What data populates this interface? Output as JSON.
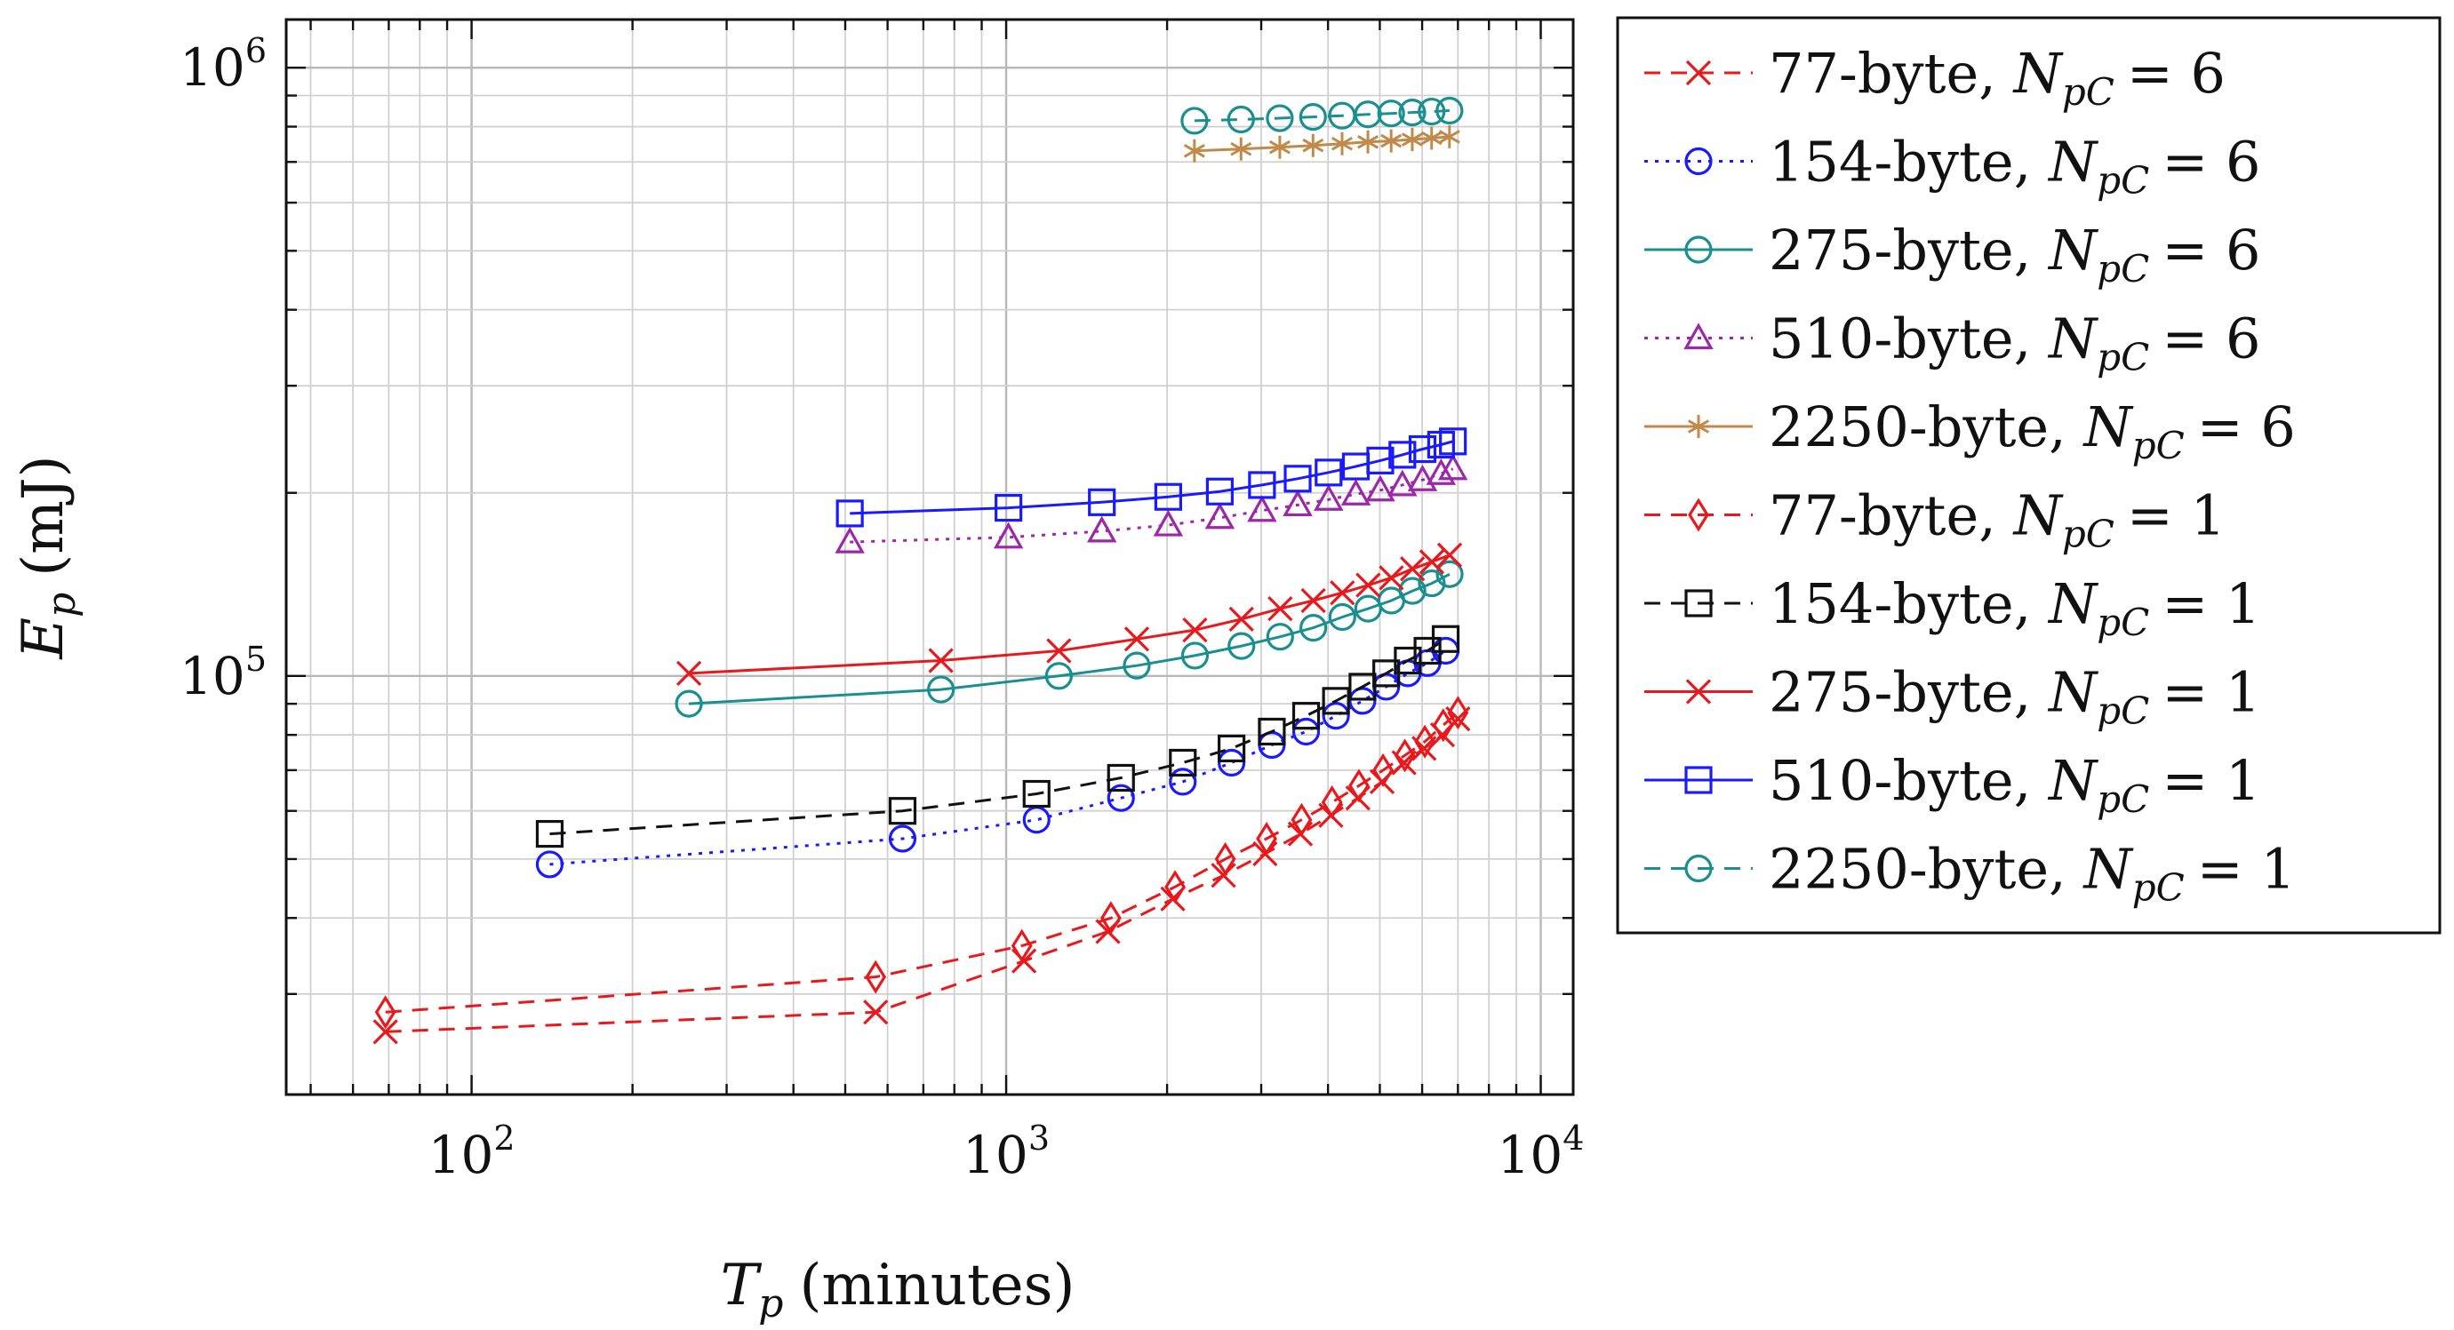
{
  "chart_data": {
    "type": "line",
    "xscale": "log",
    "yscale": "log",
    "xlim": [
      45,
      11500
    ],
    "ylim": [
      20500,
      1200000
    ],
    "xticks": [
      {
        "value": 100,
        "base": "10",
        "exp": "2"
      },
      {
        "value": 1000,
        "base": "10",
        "exp": "3"
      },
      {
        "value": 10000,
        "base": "10",
        "exp": "4"
      }
    ],
    "yticks": [
      {
        "value": 100000,
        "base": "10",
        "exp": "5"
      },
      {
        "value": 1000000,
        "base": "10",
        "exp": "6"
      }
    ],
    "xlabel": {
      "symbol": "T",
      "sub": "p",
      "unit": "(minutes)"
    },
    "ylabel": {
      "symbol": "E",
      "sub": "p",
      "unit": "(mJ)"
    },
    "grid": true,
    "legend_position": "outside-right",
    "series": [
      {
        "name": "77-byte",
        "npc_symbol": "N",
        "npc_sub": "pC",
        "npc_value": "= 6",
        "color": "#e8191c",
        "marker": "x",
        "dash": "18,12",
        "values": [
          [
            69,
            26000
          ],
          [
            570,
            28000
          ],
          [
            1080,
            34000
          ],
          [
            1550,
            38000
          ],
          [
            2050,
            43000
          ],
          [
            2550,
            47000
          ],
          [
            3050,
            51000
          ],
          [
            3550,
            55000
          ],
          [
            4050,
            59000
          ],
          [
            4550,
            63000
          ],
          [
            5050,
            67000
          ],
          [
            5550,
            72000
          ],
          [
            6050,
            76000
          ],
          [
            6550,
            80000
          ],
          [
            7000,
            85000
          ]
        ]
      },
      {
        "name": "154-byte",
        "npc_symbol": "N",
        "npc_sub": "pC",
        "npc_value": "= 6",
        "color": "#1a1aff",
        "marker": "o",
        "dash": "4,8",
        "values": [
          [
            140,
            49000
          ],
          [
            640,
            54000
          ],
          [
            1140,
            58000
          ],
          [
            1640,
            63000
          ],
          [
            2140,
            67000
          ],
          [
            2640,
            72000
          ],
          [
            3140,
            77000
          ],
          [
            3640,
            81000
          ],
          [
            4140,
            86000
          ],
          [
            4640,
            91000
          ],
          [
            5140,
            96000
          ],
          [
            5640,
            101000
          ],
          [
            6140,
            105000
          ],
          [
            6640,
            110000
          ]
        ]
      },
      {
        "name": "275-byte",
        "npc_symbol": "N",
        "npc_sub": "pC",
        "npc_value": "= 6",
        "color": "#1a8f8f",
        "marker": "o",
        "dash": "",
        "values": [
          [
            255,
            90000
          ],
          [
            755,
            95000
          ],
          [
            1255,
            100000
          ],
          [
            1755,
            104000
          ],
          [
            2255,
            108000
          ],
          [
            2755,
            112000
          ],
          [
            3255,
            116000
          ],
          [
            3755,
            120000
          ],
          [
            4255,
            125000
          ],
          [
            4755,
            129000
          ],
          [
            5255,
            133000
          ],
          [
            5755,
            138000
          ],
          [
            6255,
            142000
          ],
          [
            6755,
            147000
          ]
        ]
      },
      {
        "name": "510-byte",
        "npc_symbol": "N",
        "npc_sub": "pC",
        "npc_value": "= 6",
        "color": "#9c27a8",
        "marker": "triangle",
        "dash": "4,8",
        "values": [
          [
            510,
            166000
          ],
          [
            1010,
            169000
          ],
          [
            1510,
            173000
          ],
          [
            2010,
            177000
          ],
          [
            2510,
            182000
          ],
          [
            3010,
            187000
          ],
          [
            3510,
            191000
          ],
          [
            4010,
            195000
          ],
          [
            4510,
            199000
          ],
          [
            5010,
            202000
          ],
          [
            5510,
            206000
          ],
          [
            6010,
            210000
          ],
          [
            6510,
            215000
          ],
          [
            6850,
            219000
          ]
        ]
      },
      {
        "name": "2250-byte",
        "npc_symbol": "N",
        "npc_sub": "pC",
        "npc_value": "= 6",
        "color": "#c08a4a",
        "marker": "asterisk",
        "dash": "",
        "values": [
          [
            2250,
            730000
          ],
          [
            2750,
            735000
          ],
          [
            3250,
            740000
          ],
          [
            3750,
            745000
          ],
          [
            4250,
            750000
          ],
          [
            4750,
            755000
          ],
          [
            5250,
            758000
          ],
          [
            5750,
            762000
          ],
          [
            6250,
            766000
          ],
          [
            6750,
            770000
          ]
        ]
      },
      {
        "name": "77-byte",
        "npc_symbol": "N",
        "npc_sub": "pC",
        "npc_value": "= 1",
        "color": "#e8191c",
        "marker": "diamond",
        "dash": "18,12",
        "values": [
          [
            69,
            28000
          ],
          [
            570,
            32000
          ],
          [
            1070,
            36000
          ],
          [
            1570,
            40000
          ],
          [
            2070,
            45000
          ],
          [
            2570,
            50000
          ],
          [
            3070,
            54000
          ],
          [
            3570,
            58000
          ],
          [
            4070,
            62000
          ],
          [
            4570,
            66000
          ],
          [
            5070,
            70000
          ],
          [
            5570,
            74000
          ],
          [
            6070,
            78000
          ],
          [
            6570,
            83000
          ],
          [
            7000,
            87000
          ]
        ]
      },
      {
        "name": "154-byte",
        "npc_symbol": "N",
        "npc_sub": "pC",
        "npc_value": "= 1",
        "color": "#111111",
        "marker": "square",
        "dash": "18,12",
        "values": [
          [
            140,
            55000
          ],
          [
            640,
            60000
          ],
          [
            1140,
            64000
          ],
          [
            1640,
            68000
          ],
          [
            2140,
            72000
          ],
          [
            2640,
            76000
          ],
          [
            3140,
            81000
          ],
          [
            3640,
            86000
          ],
          [
            4140,
            91000
          ],
          [
            4640,
            96000
          ],
          [
            5140,
            101000
          ],
          [
            5640,
            106000
          ],
          [
            6140,
            110000
          ],
          [
            6640,
            115000
          ]
        ]
      },
      {
        "name": "275-byte",
        "npc_symbol": "N",
        "npc_sub": "pC",
        "npc_value": "= 1",
        "color": "#e8191c",
        "marker": "x",
        "dash": "",
        "values": [
          [
            255,
            101000
          ],
          [
            755,
            106000
          ],
          [
            1255,
            110000
          ],
          [
            1755,
            115000
          ],
          [
            2255,
            119000
          ],
          [
            2755,
            124000
          ],
          [
            3255,
            129000
          ],
          [
            3755,
            133000
          ],
          [
            4255,
            137000
          ],
          [
            4755,
            141000
          ],
          [
            5255,
            145000
          ],
          [
            5755,
            150000
          ],
          [
            6255,
            154000
          ],
          [
            6755,
            158000
          ]
        ]
      },
      {
        "name": "510-byte",
        "npc_symbol": "N",
        "npc_sub": "pC",
        "npc_value": "= 1",
        "color": "#1a1aff",
        "marker": "square",
        "dash": "",
        "values": [
          [
            510,
            185000
          ],
          [
            1010,
            189000
          ],
          [
            1510,
            193000
          ],
          [
            2010,
            197000
          ],
          [
            2510,
            201000
          ],
          [
            3010,
            206000
          ],
          [
            3510,
            211000
          ],
          [
            4010,
            216000
          ],
          [
            4510,
            221000
          ],
          [
            5010,
            226000
          ],
          [
            5510,
            231000
          ],
          [
            6010,
            236000
          ],
          [
            6510,
            240000
          ],
          [
            6850,
            243000
          ]
        ]
      },
      {
        "name": "2250-byte",
        "npc_symbol": "N",
        "npc_sub": "pC",
        "npc_value": "= 1",
        "color": "#1a8f8f",
        "marker": "o",
        "dash": "18,12",
        "values": [
          [
            2250,
            818000
          ],
          [
            2750,
            822000
          ],
          [
            3250,
            826000
          ],
          [
            3750,
            830000
          ],
          [
            4250,
            834000
          ],
          [
            4750,
            838000
          ],
          [
            5250,
            841000
          ],
          [
            5750,
            844000
          ],
          [
            6250,
            847000
          ],
          [
            6750,
            850000
          ]
        ]
      }
    ]
  }
}
